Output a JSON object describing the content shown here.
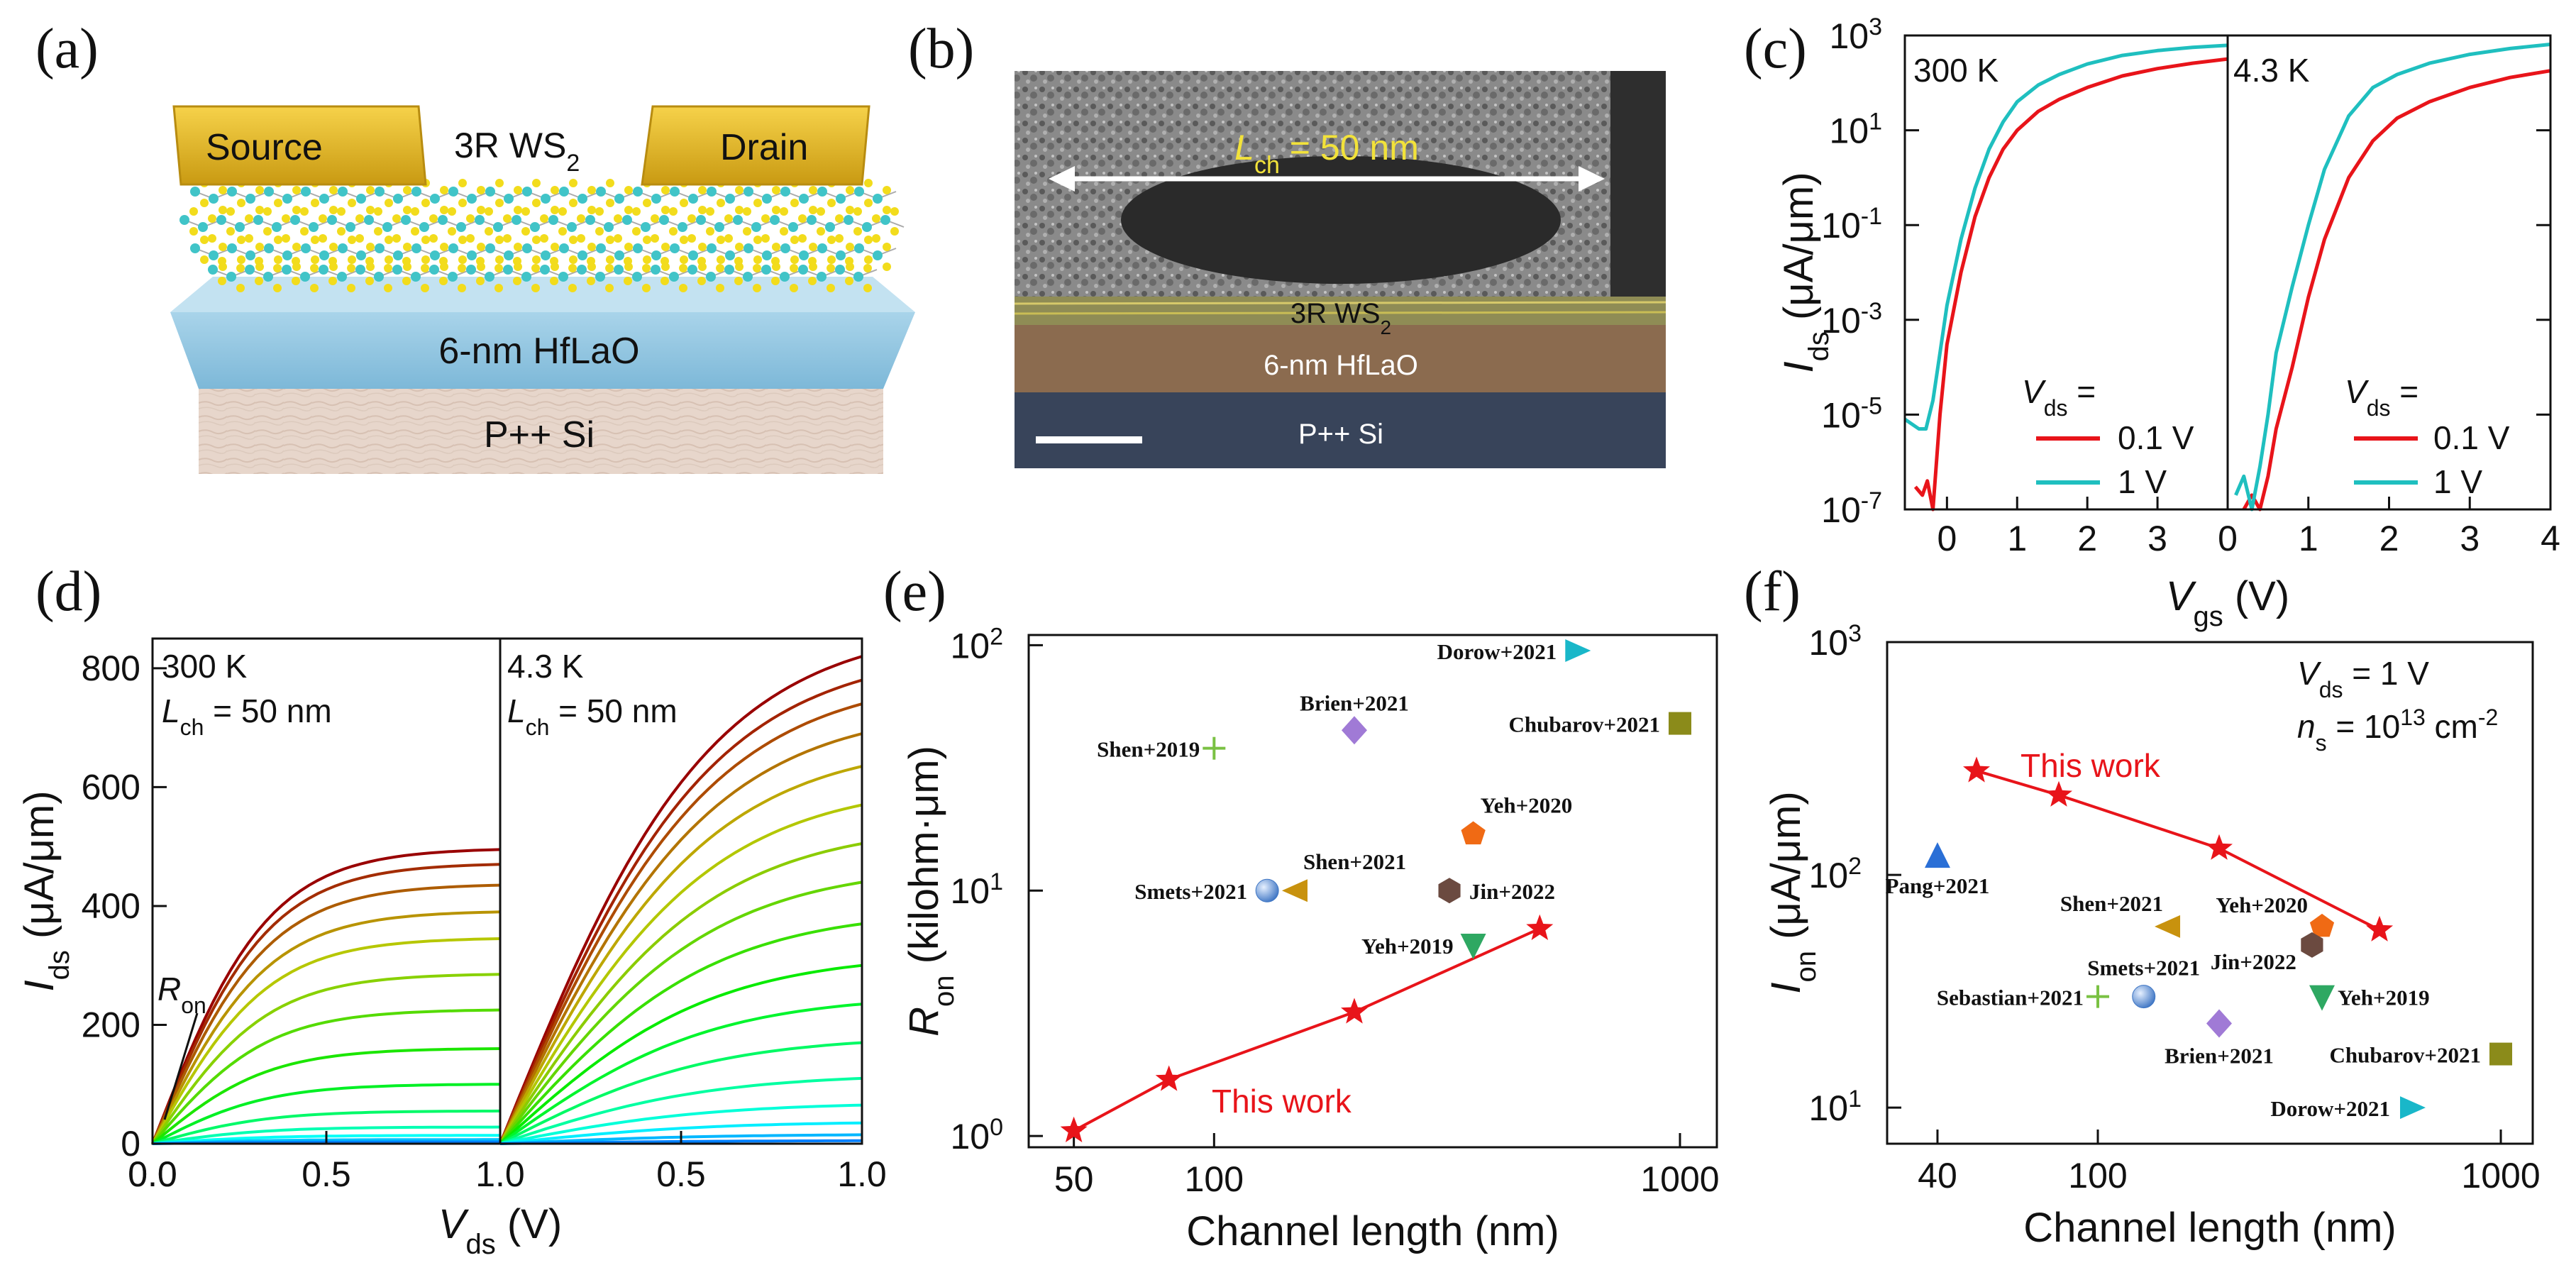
{
  "panel_labels": [
    "(a)",
    "(b)",
    "(c)",
    "(d)",
    "(e)",
    "(f)"
  ],
  "panel_a": {
    "source": "Source",
    "drain": "Drain",
    "channel_material": "3R WS",
    "channel_sub": "2",
    "dielectric": "6-nm HfLaO",
    "substrate": "P++ Si"
  },
  "panel_b": {
    "lch_main": "L",
    "lch_sub": "ch",
    "lch_value": " = 50 nm",
    "channel_material": "3R WS",
    "channel_sub": "2",
    "dielectric": "6-nm HfLaO",
    "substrate": "P++ Si"
  },
  "colors": {
    "red": "#e8141a",
    "cyan": "#1fbfbf"
  },
  "chart_data": [
    {
      "id": "c",
      "type": "line",
      "title": "",
      "xlabel": "Vgs (V)",
      "ylabel": "Ids (μA/μm)",
      "xlabel_main": "V",
      "xlabel_sub": "gs",
      "xlabel_unit": " (V)",
      "ylabel_main": "I",
      "ylabel_sub": "ds",
      "ylabel_unit": " (μA/μm)",
      "yscale": "log",
      "ylim": [
        1e-07,
        1000
      ],
      "yticks": [
        {
          "v": 1e-07,
          "base": "10",
          "exp": "-7"
        },
        {
          "v": 1e-05,
          "base": "10",
          "exp": "-5"
        },
        {
          "v": 0.001,
          "base": "10",
          "exp": "-3"
        },
        {
          "v": 0.1,
          "base": "10",
          "exp": "-1"
        },
        {
          "v": 10,
          "base": "10",
          "exp": "1"
        },
        {
          "v": 1000,
          "base": "10",
          "exp": "3"
        }
      ],
      "legend_title": "V",
      "legend_title_sub": "ds",
      "legend_title_suffix": " =",
      "legend": [
        "0.1 V",
        "1 V"
      ],
      "subplots": [
        {
          "label": "300 K",
          "xlim": [
            -0.6,
            4
          ],
          "xticks": [
            "0",
            "1",
            "2",
            "3"
          ],
          "xtick_values": [
            0,
            1,
            2,
            3
          ],
          "series": [
            {
              "name": "0.1 V",
              "color": "#e8141a",
              "x": [
                -0.45,
                -0.35,
                -0.28,
                -0.2,
                -0.1,
                0,
                0.2,
                0.4,
                0.6,
                0.8,
                1.0,
                1.3,
                1.6,
                2.0,
                2.5,
                3.0,
                3.5,
                4.0
              ],
              "y": [
                3e-07,
                2e-07,
                4e-07,
                1e-07,
                1e-05,
                0.0003,
                0.01,
                0.15,
                1,
                4,
                10,
                25,
                45,
                80,
                140,
                200,
                260,
                320
              ]
            },
            {
              "name": "1 V",
              "color": "#1fbfbf",
              "x": [
                -0.6,
                -0.4,
                -0.3,
                -0.2,
                -0.1,
                0,
                0.2,
                0.4,
                0.6,
                0.8,
                1.0,
                1.3,
                1.6,
                2.0,
                2.5,
                3.0,
                3.5,
                4.0
              ],
              "y": [
                8e-06,
                5e-06,
                5e-06,
                2e-05,
                0.0002,
                0.002,
                0.05,
                0.6,
                4,
                15,
                40,
                90,
                150,
                250,
                380,
                480,
                560,
                620
              ]
            }
          ]
        },
        {
          "label": "4.3 K",
          "xlim": [
            0,
            4
          ],
          "xticks": [
            "0",
            "1",
            "2",
            "3",
            "4"
          ],
          "xtick_values": [
            0,
            1,
            2,
            3,
            4
          ],
          "series": [
            {
              "name": "0.1 V",
              "color": "#e8141a",
              "x": [
                0.2,
                0.3,
                0.4,
                0.5,
                0.6,
                0.8,
                1.0,
                1.2,
                1.5,
                1.8,
                2.1,
                2.5,
                3.0,
                3.5,
                4.0
              ],
              "y": [
                1e-07,
                2e-07,
                1e-07,
                5e-07,
                5e-06,
                0.0001,
                0.003,
                0.05,
                1,
                6,
                18,
                40,
                80,
                130,
                180
              ]
            },
            {
              "name": "1 V",
              "color": "#1fbfbf",
              "x": [
                0.1,
                0.2,
                0.3,
                0.4,
                0.5,
                0.6,
                0.8,
                1.0,
                1.2,
                1.5,
                1.8,
                2.1,
                2.5,
                3.0,
                3.5,
                4.0
              ],
              "y": [
                2e-07,
                5e-07,
                1e-07,
                8e-07,
                1e-05,
                0.0002,
                0.005,
                0.1,
                1.5,
                20,
                80,
                150,
                260,
                400,
                530,
                650
              ]
            }
          ]
        }
      ]
    },
    {
      "id": "d",
      "type": "line",
      "title": "",
      "xlabel": "Vds (V)",
      "ylabel": "Ids (μA/μm)",
      "xlabel_main": "V",
      "xlabel_sub": "ds",
      "xlabel_unit": " (V)",
      "ylabel_main": "I",
      "ylabel_sub": "ds",
      "ylabel_unit": " (μA/μm)",
      "ylim": [
        0,
        850
      ],
      "yticks": [
        "0",
        "200",
        "400",
        "600",
        "800"
      ],
      "ytick_values": [
        0,
        200,
        400,
        600,
        800
      ],
      "ron_label": "R",
      "ron_sub": "on",
      "lch_main": "L",
      "lch_sub": "ch",
      "lch_value": " = 50 nm",
      "subplots": [
        {
          "label": "300 K",
          "xlim": [
            0,
            1.0
          ],
          "xticks": [
            "0.0",
            "0.5",
            "1.0"
          ],
          "xtick_values": [
            0,
            0.5,
            1.0
          ],
          "saturation": [
            495,
            470,
            435,
            390,
            345,
            285,
            225,
            160,
            100,
            55,
            28,
            14,
            7,
            3
          ],
          "vsat": 0.6
        },
        {
          "label": "4.3 K",
          "xlim": [
            0,
            1.0
          ],
          "xticks": [
            "0.5",
            "1.0"
          ],
          "xtick_values": [
            0.5,
            1.0
          ],
          "saturation": [
            820,
            780,
            740,
            690,
            635,
            570,
            505,
            440,
            370,
            300,
            235,
            170,
            110,
            65,
            35,
            15,
            5
          ],
          "vsat": 1.05
        }
      ]
    },
    {
      "id": "e",
      "type": "scatter",
      "title": "",
      "xlabel": "Channel length (nm)",
      "ylabel": "Ron (kilohm·μm)",
      "ylabel_main": "R",
      "ylabel_sub": "on",
      "ylabel_unit": " (kilohm·μm)",
      "xscale": "log",
      "yscale": "log",
      "xlim": [
        40,
        1200
      ],
      "ylim": [
        0.9,
        110
      ],
      "xticks": [
        "50",
        "100",
        "1000"
      ],
      "xtick_values": [
        50,
        100,
        1000
      ],
      "yticks": [
        {
          "v": 1,
          "base": "10",
          "exp": "0"
        },
        {
          "v": 10,
          "base": "10",
          "exp": "1"
        },
        {
          "v": 100,
          "base": "10",
          "exp": "2"
        }
      ],
      "this_work_label": "This work",
      "this_work": {
        "x": [
          50,
          80,
          200,
          500
        ],
        "y": [
          1.05,
          1.7,
          3.2,
          7.0
        ]
      },
      "points": [
        {
          "label": "Dorow+2021",
          "x": 600,
          "y": 95,
          "marker": "tri-right",
          "color": "#19b7c9"
        },
        {
          "label": "Brien+2021",
          "x": 200,
          "y": 45,
          "marker": "diamond",
          "color": "#a07ad6"
        },
        {
          "label": "Chubarov+2021",
          "x": 1000,
          "y": 48,
          "marker": "square",
          "color": "#8b8b1a"
        },
        {
          "label": "Shen+2019",
          "x": 100,
          "y": 38,
          "marker": "plus",
          "color": "#7ac143"
        },
        {
          "label": "Yeh+2020",
          "x": 360,
          "y": 17,
          "marker": "pentagon",
          "color": "#f06a14"
        },
        {
          "label": "Shen+2021",
          "x": 150,
          "y": 10,
          "marker": "tri-left",
          "color": "#c8920e"
        },
        {
          "label": "Smets+2021",
          "x": 130,
          "y": 10,
          "marker": "sphere",
          "color": "#5b8fd6"
        },
        {
          "label": "Jin+2022",
          "x": 320,
          "y": 10,
          "marker": "hexagon",
          "color": "#6b4a40"
        },
        {
          "label": "Yeh+2019",
          "x": 360,
          "y": 6,
          "marker": "tri-down",
          "color": "#2ea862"
        }
      ]
    },
    {
      "id": "f",
      "type": "scatter",
      "title": "",
      "xlabel": "Channel length (nm)",
      "ylabel": "Ion (μA/μm)",
      "ylabel_main": "I",
      "ylabel_sub": "on",
      "ylabel_unit": " (μA/μm)",
      "xscale": "log",
      "yscale": "log",
      "xlim": [
        30,
        1200
      ],
      "ylim": [
        7,
        1000
      ],
      "xticks": [
        "40",
        "100",
        "1000"
      ],
      "xtick_values": [
        40,
        100,
        1000
      ],
      "yticks": [
        {
          "v": 10,
          "base": "10",
          "exp": "1"
        },
        {
          "v": 100,
          "base": "10",
          "exp": "2"
        },
        {
          "v": 1000,
          "base": "10",
          "exp": "3"
        }
      ],
      "cond_vds_main": "V",
      "cond_vds_sub": "ds",
      "cond_vds_value": " = 1 V",
      "cond_ns_main": "n",
      "cond_ns_sub": "s",
      "cond_ns_value": " = 10",
      "cond_ns_exp": "13",
      "cond_ns_unit": " cm",
      "cond_ns_unit_exp": "-2",
      "this_work_label": "This work",
      "this_work": {
        "x": [
          50,
          80,
          200,
          500
        ],
        "y": [
          280,
          220,
          130,
          58
        ]
      },
      "points": [
        {
          "label": "Pang+2021",
          "x": 40,
          "y": 120,
          "marker": "tri-up",
          "color": "#2a6fd6"
        },
        {
          "label": "Shen+2021",
          "x": 150,
          "y": 60,
          "marker": "tri-left",
          "color": "#c8920e"
        },
        {
          "label": "Yeh+2020",
          "x": 360,
          "y": 60,
          "marker": "pentagon",
          "color": "#f06a14"
        },
        {
          "label": "Jin+2022",
          "x": 340,
          "y": 50,
          "marker": "hexagon",
          "color": "#6b4a40"
        },
        {
          "label": "Smets+2021",
          "x": 130,
          "y": 30,
          "marker": "sphere",
          "color": "#5b8fd6"
        },
        {
          "label": "Sebastian+2021",
          "x": 100,
          "y": 30,
          "marker": "plus",
          "color": "#7ac143"
        },
        {
          "label": "Yeh+2019",
          "x": 360,
          "y": 30,
          "marker": "tri-down",
          "color": "#2ea862"
        },
        {
          "label": "Brien+2021",
          "x": 200,
          "y": 23,
          "marker": "diamond",
          "color": "#a07ad6"
        },
        {
          "label": "Chubarov+2021",
          "x": 1000,
          "y": 17,
          "marker": "square",
          "color": "#8b8b1a"
        },
        {
          "label": "Dorow+2021",
          "x": 600,
          "y": 10,
          "marker": "tri-right",
          "color": "#19b7c9"
        }
      ]
    }
  ]
}
